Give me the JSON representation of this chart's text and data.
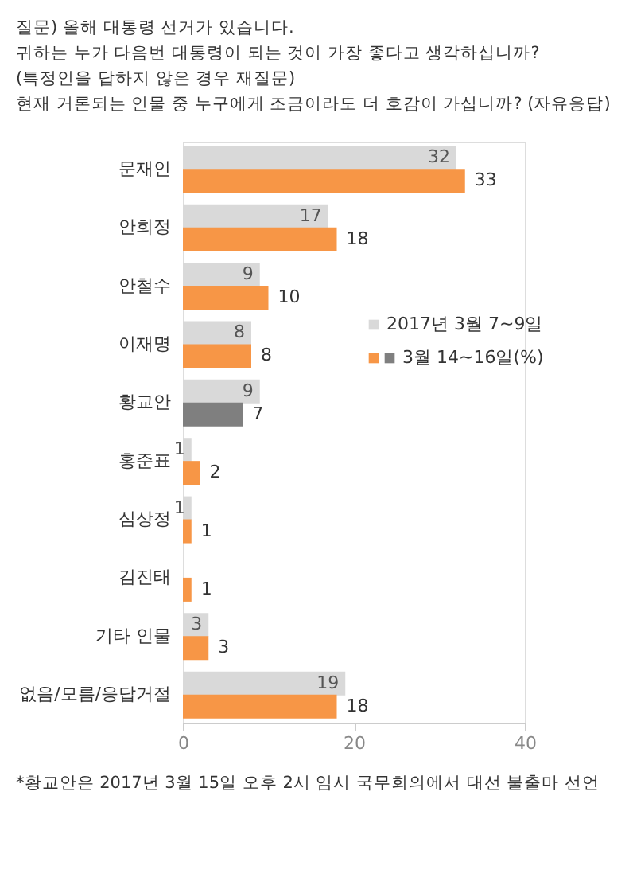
{
  "chart_data": {
    "type": "bar",
    "orientation": "horizontal",
    "title": "질문) 올해 대통령 선거가 있습니다.\n귀하는 누가 다음번 대통령이 되는 것이 가장 좋다고 생각하십니까?\n(특정인을 답하지 않은 경우 재질문)\n현재 거론되는 인물 중 누구에게 조금이라도 더 호감이 가십니까? (자유응답)",
    "categories": [
      "문재인",
      "안희정",
      "안철수",
      "이재명",
      "황교안",
      "홍준표",
      "심상정",
      "김진태",
      "기타 인물",
      "없음/모름/응답거절"
    ],
    "series": [
      {
        "name": "2017년 3월 7~9일",
        "color": "#d9d9d9",
        "values": [
          32,
          17,
          9,
          8,
          9,
          1,
          1,
          null,
          3,
          19
        ]
      },
      {
        "name": "3월 14~16일(%)",
        "color": "#f79646",
        "colors": [
          "#f79646",
          "#f79646",
          "#f79646",
          "#f79646",
          "#7f7f7f",
          "#f79646",
          "#f79646",
          "#f79646",
          "#f79646",
          "#f79646"
        ],
        "values": [
          33,
          18,
          10,
          8,
          7,
          2,
          1,
          1,
          3,
          18
        ]
      }
    ],
    "xlim": [
      0,
      40
    ],
    "xticks": [
      0,
      20,
      40
    ],
    "grid": false,
    "legend": "right",
    "data_labels": true,
    "annotations": [
      "*황교안은 2017년 3월 15일 오후 2시 임시 국무회의에서 대선 불출마 선언"
    ]
  }
}
